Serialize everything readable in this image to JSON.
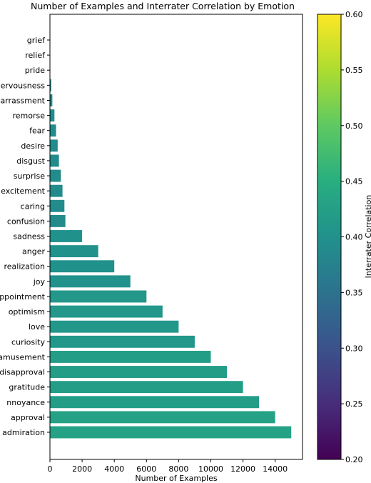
{
  "chart_data": {
    "type": "bar",
    "orientation": "horizontal",
    "title": "Number of Examples and Interrater Correlation by Emotion",
    "xlabel": "Number of Examples",
    "ylabel": "",
    "xlim": [
      0,
      15700
    ],
    "xticks": [
      0,
      2000,
      4000,
      6000,
      8000,
      10000,
      12000,
      14000
    ],
    "grid": false,
    "categories": [
      "grief",
      "relief",
      "pride",
      "nervousness",
      "embarrassment",
      "remorse",
      "fear",
      "desire",
      "disgust",
      "surprise",
      "excitement",
      "caring",
      "confusion",
      "sadness",
      "anger",
      "realization",
      "joy",
      "disappointment",
      "optimism",
      "love",
      "curiosity",
      "amusement",
      "disapproval",
      "gratitude",
      "annoyance",
      "approval",
      "admiration"
    ],
    "category_labels": [
      "grief",
      "relief",
      "pride",
      "ervousness",
      "arrassment",
      "remorse",
      "fear",
      "desire",
      "disgust",
      "surprise",
      "excitement",
      "caring",
      "confusion",
      "sadness",
      "anger",
      "realization",
      "joy",
      "ppointment",
      "optimism",
      "love",
      "curiosity",
      "amusement",
      "disapproval",
      "gratitude",
      "nnoyance",
      "approval",
      "admiration"
    ],
    "values": [
      0,
      0,
      0,
      80,
      150,
      280,
      380,
      480,
      560,
      680,
      780,
      900,
      960,
      2000,
      3000,
      4000,
      5000,
      6000,
      7000,
      8000,
      9000,
      10000,
      11000,
      12000,
      13000,
      14000,
      15000
    ],
    "correlation": [
      0.38,
      0.38,
      0.38,
      0.38,
      0.39,
      0.39,
      0.39,
      0.39,
      0.39,
      0.39,
      0.39,
      0.39,
      0.39,
      0.4,
      0.4,
      0.4,
      0.4,
      0.41,
      0.41,
      0.41,
      0.41,
      0.42,
      0.42,
      0.42,
      0.42,
      0.43,
      0.43
    ],
    "colorbar": {
      "label": "Interrater Correlation",
      "colormap": "viridis",
      "range": [
        0.2,
        0.6
      ],
      "ticks": [
        "0.20",
        "0.25",
        "0.30",
        "0.35",
        "0.40",
        "0.45",
        "0.50",
        "0.55",
        "0.60"
      ]
    }
  }
}
